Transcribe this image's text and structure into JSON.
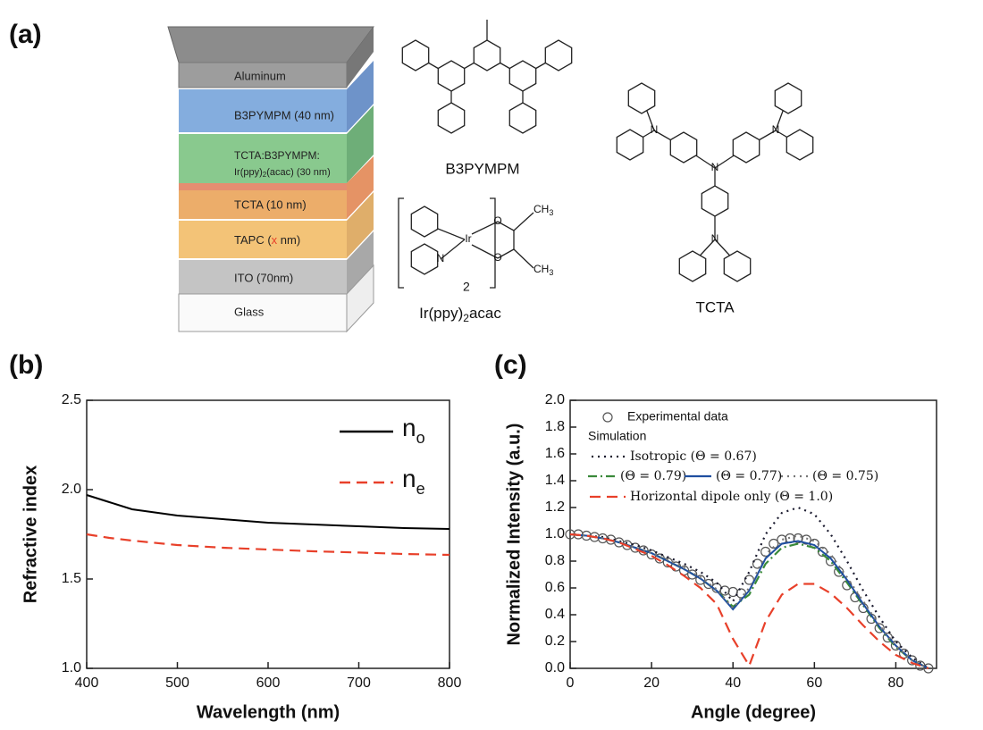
{
  "panel_labels": [
    "(a)",
    "(b)",
    "(c)"
  ],
  "diagram": {
    "layers": [
      [
        "Aluminum"
      ],
      [
        "B3PYMPM (40 nm)"
      ],
      [
        "TCTA:B3PYMPM:"
      ],
      [
        "Ir(ppy)",
        "2",
        "(acac) (30 nm)"
      ],
      [
        "TCTA (10 nm)"
      ],
      [
        "TAPC (",
        "x",
        " nm)"
      ],
      [
        "ITO (70nm)"
      ],
      [
        "Glass"
      ]
    ],
    "molecules": {
      "b3pympm": {
        "name": "B3PYMPM"
      },
      "irppy": {
        "name": [
          "Ir(ppy)",
          "2",
          "acac"
        ],
        "atoms": [
          "Ir",
          "N",
          "O",
          "O",
          "CH",
          "3",
          "CH",
          "3",
          "2"
        ]
      },
      "tcta": {
        "name": "TCTA",
        "atoms": [
          "N",
          "N",
          "N",
          "N"
        ]
      }
    }
  },
  "chart_data": [
    {
      "type": "line",
      "xlabel": "Wavelength (nm)",
      "ylabel": "Refractive index",
      "xlim": [
        400,
        800
      ],
      "xticks": [
        400,
        500,
        600,
        700,
        800
      ],
      "ylim": [
        1.0,
        2.5
      ],
      "yticks": [
        {
          "value": 1.0,
          "label": "1.0"
        },
        1.5,
        {
          "value": 2.0,
          "label": "2.0"
        },
        2.5
      ],
      "x": [
        400,
        425,
        450,
        500,
        550,
        600,
        650,
        700,
        750,
        800
      ],
      "series": [
        {
          "name": "n",
          "subscript": "o",
          "color": "#000000",
          "style": "solid",
          "values": [
            1.97,
            1.93,
            1.89,
            1.855,
            1.835,
            1.815,
            1.805,
            1.795,
            1.785,
            1.78
          ]
        },
        {
          "name": "n",
          "subscript": "e",
          "color": "#e8402a",
          "style": "dashed",
          "values": [
            1.75,
            1.73,
            1.715,
            1.69,
            1.675,
            1.665,
            1.655,
            1.648,
            1.64,
            1.635
          ]
        }
      ]
    },
    {
      "type": "line",
      "xlabel": "Angle (degree)",
      "ylabel": "Normalized Intensity (a.u.)",
      "xlim": [
        0,
        90
      ],
      "xticks": [
        0,
        20,
        40,
        60,
        80
      ],
      "ylim": [
        0,
        2.0
      ],
      "yticks": [
        {
          "value": 0,
          "label": "0.0"
        },
        0.2,
        0.4,
        0.6,
        0.8,
        {
          "value": 1.0,
          "label": "1.0"
        },
        1.2,
        1.4,
        1.6,
        1.8,
        {
          "value": 2.0,
          "label": "2.0"
        }
      ],
      "legend_title": "Simulation",
      "x": [
        0,
        4,
        8,
        12,
        16,
        20,
        24,
        28,
        32,
        36,
        40,
        44,
        48,
        52,
        56,
        60,
        64,
        68,
        72,
        76,
        80,
        84,
        88
      ],
      "series": [
        {
          "name": "Experimental data",
          "color": "#555555",
          "style": "none",
          "marker": "circle",
          "x": [
            0,
            2,
            4,
            6,
            8,
            10,
            12,
            14,
            16,
            18,
            20,
            22,
            24,
            26,
            28,
            30,
            32,
            34,
            36,
            38,
            40,
            42,
            44,
            46,
            48,
            50,
            52,
            54,
            56,
            58,
            60,
            62,
            64,
            66,
            68,
            70,
            72,
            74,
            76,
            78,
            80,
            82,
            84,
            86,
            88
          ],
          "values": [
            1.0,
            1.0,
            0.99,
            0.98,
            0.97,
            0.96,
            0.94,
            0.92,
            0.9,
            0.88,
            0.85,
            0.82,
            0.79,
            0.76,
            0.73,
            0.7,
            0.66,
            0.63,
            0.6,
            0.58,
            0.57,
            0.56,
            0.66,
            0.78,
            0.87,
            0.93,
            0.96,
            0.97,
            0.97,
            0.96,
            0.93,
            0.87,
            0.8,
            0.72,
            0.62,
            0.53,
            0.45,
            0.37,
            0.3,
            0.23,
            0.17,
            0.11,
            0.06,
            0.02,
            0.0
          ]
        },
        {
          "name": "Isotropic (Θ = 0.67)",
          "color": "#1a1a2e",
          "style": "dotted",
          "values": [
            1.0,
            0.99,
            0.98,
            0.95,
            0.92,
            0.88,
            0.83,
            0.78,
            0.72,
            0.64,
            0.5,
            0.72,
            1.0,
            1.16,
            1.2,
            1.15,
            1.0,
            0.8,
            0.58,
            0.38,
            0.2,
            0.08,
            0.0
          ]
        },
        {
          "name": "(Θ = 0.79)",
          "color": "#3a8a3a",
          "style": "dashdot",
          "values": [
            1.0,
            0.99,
            0.97,
            0.94,
            0.9,
            0.86,
            0.8,
            0.74,
            0.67,
            0.58,
            0.46,
            0.55,
            0.78,
            0.9,
            0.93,
            0.9,
            0.8,
            0.64,
            0.47,
            0.3,
            0.16,
            0.06,
            0.0
          ]
        },
        {
          "name": "(Θ = 0.77)",
          "color": "#1f4fa0",
          "style": "solid",
          "values": [
            1.0,
            0.99,
            0.97,
            0.94,
            0.9,
            0.86,
            0.8,
            0.74,
            0.67,
            0.58,
            0.44,
            0.58,
            0.82,
            0.93,
            0.95,
            0.92,
            0.82,
            0.66,
            0.48,
            0.31,
            0.17,
            0.06,
            0.0
          ]
        },
        {
          "name": "(Θ = 0.75)",
          "color": "#777777",
          "style": "dotted",
          "values": [
            1.0,
            0.99,
            0.97,
            0.94,
            0.9,
            0.86,
            0.81,
            0.75,
            0.68,
            0.59,
            0.45,
            0.6,
            0.85,
            0.96,
            0.99,
            0.95,
            0.85,
            0.68,
            0.5,
            0.32,
            0.17,
            0.06,
            0.0
          ]
        },
        {
          "name": "Horizontal dipole only (Θ = 1.0)",
          "color": "#e8402a",
          "style": "dashed",
          "values": [
            1.0,
            0.99,
            0.97,
            0.94,
            0.89,
            0.84,
            0.77,
            0.69,
            0.6,
            0.48,
            0.22,
            0.02,
            0.35,
            0.55,
            0.63,
            0.63,
            0.56,
            0.45,
            0.32,
            0.2,
            0.1,
            0.04,
            0.0
          ]
        }
      ]
    }
  ]
}
